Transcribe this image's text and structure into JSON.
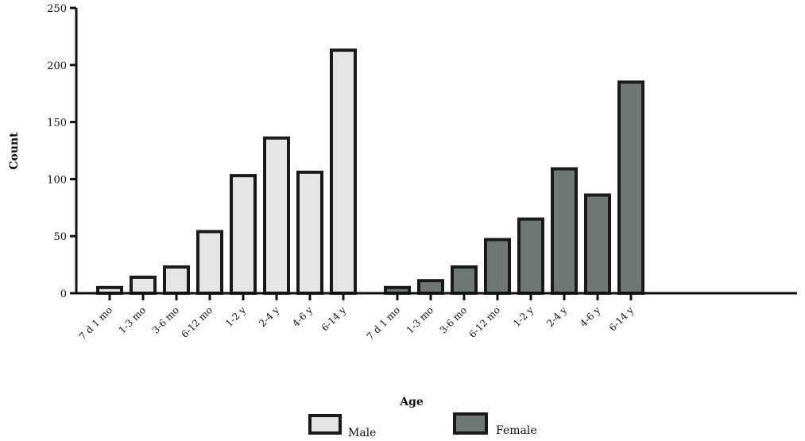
{
  "chart_data": {
    "type": "bar",
    "xlabel": "Age",
    "ylabel": "Count",
    "ylim": [
      0,
      250
    ],
    "yticks": [
      0,
      50,
      100,
      150,
      200,
      250
    ],
    "categories": [
      "7 d 1 mo",
      "1-3 mo",
      "3-6 mo",
      "6-12 mo",
      "1-2 y",
      "2-4 y",
      "4-6 y",
      "6-14 y"
    ],
    "grid": false,
    "legend_position": "bottom-center",
    "series": [
      {
        "name": "Male",
        "color": "#e3e6e5",
        "values": [
          5,
          14,
          23,
          54,
          103,
          136,
          106,
          213
        ]
      },
      {
        "name": "Female",
        "color": "#6f7877",
        "values": [
          5,
          11,
          23,
          47,
          65,
          109,
          86,
          185
        ]
      }
    ]
  }
}
